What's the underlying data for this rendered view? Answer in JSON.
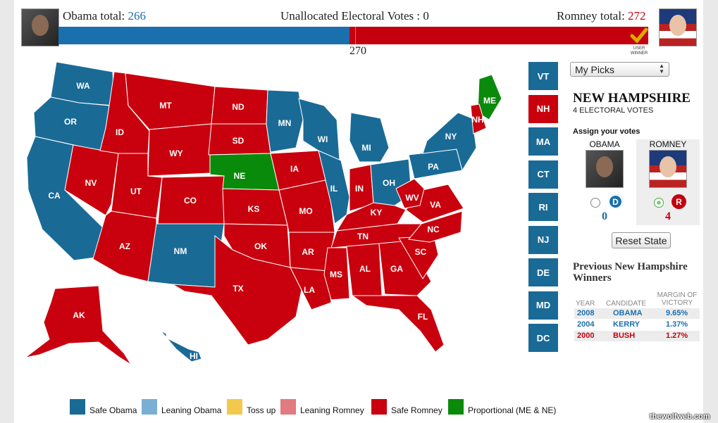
{
  "header": {
    "obama_label": "Obama total:",
    "obama_total": "266",
    "unallocated": "Unallocated Electoral Votes : 0",
    "romney_label": "Romney total:",
    "romney_total": "272",
    "threshold": "270",
    "winner_badge": "USER WINNER",
    "obama_share": 0.494,
    "romney_share": 0.506
  },
  "colors": {
    "safe_obama": "#1a6a96",
    "leaning_obama": "#7aafd4",
    "toss_up": "#f2c94c",
    "leaning_romney": "#e07b80",
    "safe_romney": "#c9000d",
    "proportional": "#0a8a0a"
  },
  "map": {
    "states": [
      {
        "abbr": "WA",
        "party": "safe_obama"
      },
      {
        "abbr": "OR",
        "party": "safe_obama"
      },
      {
        "abbr": "CA",
        "party": "safe_obama"
      },
      {
        "abbr": "NV",
        "party": "safe_romney"
      },
      {
        "abbr": "ID",
        "party": "safe_romney"
      },
      {
        "abbr": "MT",
        "party": "safe_romney"
      },
      {
        "abbr": "WY",
        "party": "safe_romney"
      },
      {
        "abbr": "UT",
        "party": "safe_romney"
      },
      {
        "abbr": "AZ",
        "party": "safe_romney"
      },
      {
        "abbr": "CO",
        "party": "safe_romney"
      },
      {
        "abbr": "NM",
        "party": "safe_obama"
      },
      {
        "abbr": "ND",
        "party": "safe_romney"
      },
      {
        "abbr": "SD",
        "party": "safe_romney"
      },
      {
        "abbr": "NE",
        "party": "proportional"
      },
      {
        "abbr": "KS",
        "party": "safe_romney"
      },
      {
        "abbr": "OK",
        "party": "safe_romney"
      },
      {
        "abbr": "TX",
        "party": "safe_romney"
      },
      {
        "abbr": "MN",
        "party": "safe_obama"
      },
      {
        "abbr": "IA",
        "party": "safe_romney"
      },
      {
        "abbr": "MO",
        "party": "safe_romney"
      },
      {
        "abbr": "AR",
        "party": "safe_romney"
      },
      {
        "abbr": "LA",
        "party": "safe_romney"
      },
      {
        "abbr": "WI",
        "party": "safe_obama"
      },
      {
        "abbr": "IL",
        "party": "safe_obama"
      },
      {
        "abbr": "MI",
        "party": "safe_obama"
      },
      {
        "abbr": "IN",
        "party": "safe_romney"
      },
      {
        "abbr": "OH",
        "party": "safe_obama"
      },
      {
        "abbr": "KY",
        "party": "safe_romney"
      },
      {
        "abbr": "TN",
        "party": "safe_romney"
      },
      {
        "abbr": "MS",
        "party": "safe_romney"
      },
      {
        "abbr": "AL",
        "party": "safe_romney"
      },
      {
        "abbr": "GA",
        "party": "safe_romney"
      },
      {
        "abbr": "FL",
        "party": "safe_romney"
      },
      {
        "abbr": "SC",
        "party": "safe_romney"
      },
      {
        "abbr": "NC",
        "party": "safe_romney"
      },
      {
        "abbr": "VA",
        "party": "safe_romney"
      },
      {
        "abbr": "WV",
        "party": "safe_romney"
      },
      {
        "abbr": "PA",
        "party": "safe_obama"
      },
      {
        "abbr": "NY",
        "party": "safe_obama"
      },
      {
        "abbr": "ME",
        "party": "proportional"
      },
      {
        "abbr": "NH",
        "party": "safe_romney"
      },
      {
        "abbr": "AK",
        "party": "safe_romney"
      },
      {
        "abbr": "HI",
        "party": "safe_obama"
      }
    ]
  },
  "side_states": [
    {
      "abbr": "VT",
      "party": "safe_obama"
    },
    {
      "abbr": "NH",
      "party": "safe_romney"
    },
    {
      "abbr": "MA",
      "party": "safe_obama"
    },
    {
      "abbr": "CT",
      "party": "safe_obama"
    },
    {
      "abbr": "RI",
      "party": "safe_obama"
    },
    {
      "abbr": "NJ",
      "party": "safe_obama"
    },
    {
      "abbr": "DE",
      "party": "safe_obama"
    },
    {
      "abbr": "MD",
      "party": "safe_obama"
    },
    {
      "abbr": "DC",
      "party": "safe_obama"
    }
  ],
  "panel": {
    "dropdown_value": "My Picks",
    "state_name": "NEW HAMPSHIRE",
    "electoral_votes": "4 ELECTORAL VOTES",
    "assign_label": "Assign your votes",
    "obama_name": "OBAMA",
    "romney_name": "ROMNEY",
    "obama_badge": "D",
    "romney_badge": "R",
    "obama_votes": "0",
    "romney_votes": "4",
    "reset_label": "Reset State",
    "previous_title": "Previous New Hampshire Winners",
    "history_headers": [
      "YEAR",
      "CANDIDATE",
      "MARGIN OF VICTORY"
    ],
    "history": [
      {
        "year": "2008",
        "candidate": "OBAMA",
        "margin": "9.65%",
        "party": "dem"
      },
      {
        "year": "2004",
        "candidate": "KERRY",
        "margin": "1.37%",
        "party": "dem"
      },
      {
        "year": "2000",
        "candidate": "BUSH",
        "margin": "1.27%",
        "party": "rep"
      }
    ]
  },
  "legend": [
    {
      "label": "Safe Obama",
      "key": "safe_obama"
    },
    {
      "label": "Leaning Obama",
      "key": "leaning_obama"
    },
    {
      "label": "Toss up",
      "key": "toss_up"
    },
    {
      "label": "Leaning Romney",
      "key": "leaning_romney"
    },
    {
      "label": "Safe Romney",
      "key": "safe_romney"
    },
    {
      "label": "Proportional (ME & NE)",
      "key": "proportional"
    }
  ],
  "watermark": "thewolfweb.com"
}
